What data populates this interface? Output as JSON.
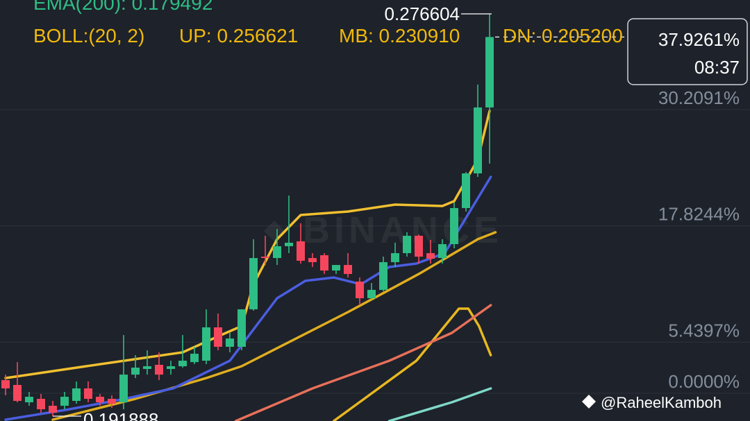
{
  "chart_data": {
    "type": "candlestick",
    "indicators": {
      "ema": "EMA(200): 0.179492",
      "boll": "BOLL:(20, 2)",
      "up": "UP: 0.256621",
      "mb": "MB: 0.230910",
      "dn": "DN: 0.205200"
    },
    "open": [
      1.4,
      0.89,
      -0.96,
      -0.59,
      -1.33,
      -1.33,
      -0.81,
      0.52,
      -0.37,
      -0.59,
      -0.96,
      1.99,
      2.59,
      3.03,
      2.59,
      2.88,
      3.32,
      3.47,
      7.02,
      4.95,
      4.95,
      8.94,
      14.55,
      14.4,
      15.66,
      16.18,
      14.4,
      14.7,
      13.07,
      13.66,
      11.89,
      10.12,
      11.01,
      13.96,
      14.92,
      16.77,
      14.92,
      14.4,
      15.88,
      19.72,
      23.41,
      30.43
    ],
    "high": [
      1.99,
      3.32,
      0.15,
      -0.07,
      -0.81,
      0.15,
      1.26,
      1.26,
      -0.07,
      -0.22,
      6.2,
      4.06,
      4.58,
      4.36,
      3.47,
      6.2,
      4.95,
      8.94,
      8.49,
      6.43,
      8.94,
      16.4,
      16.77,
      17.5,
      21.05,
      18.1,
      14.92,
      14.92,
      13.66,
      14.92,
      12.33,
      11.74,
      14.55,
      16.03,
      17.14,
      16.91,
      16.32,
      16.4,
      20.31,
      23.56,
      32.87,
      40.4
    ],
    "low": [
      -0.22,
      -0.96,
      -1.33,
      -2.07,
      -2.44,
      -1.7,
      -1.11,
      -0.96,
      -1.33,
      -1.55,
      -1.7,
      1.62,
      1.99,
      1.4,
      1.99,
      2.73,
      3.1,
      3.1,
      4.58,
      4.36,
      4.58,
      8.79,
      13.66,
      13.66,
      14.92,
      13.81,
      13.44,
      12.7,
      12.7,
      12.33,
      9.38,
      9.97,
      10.86,
      13.44,
      14.55,
      13.81,
      13.81,
      13.81,
      15.44,
      19.35,
      23.04,
      24.45
    ],
    "close": [
      0.52,
      -0.81,
      -0.37,
      -1.7,
      -2.07,
      -0.37,
      0.52,
      -0.59,
      -0.96,
      -1.11,
      1.99,
      2.73,
      2.88,
      1.99,
      2.88,
      3.47,
      4.21,
      7.02,
      4.95,
      5.83,
      8.94,
      14.4,
      14.4,
      15.66,
      16.03,
      14.11,
      13.96,
      13.07,
      13.66,
      12.7,
      10.12,
      11.01,
      13.96,
      14.92,
      16.77,
      14.55,
      14.33,
      15.88,
      19.72,
      23.41,
      30.43,
      37.93
    ],
    "up_color": "#2ebd85",
    "down_color": "#f6465d",
    "lines": [
      {
        "color": "#f0c030",
        "x": [
          0,
          8,
          15,
          18,
          20,
          21,
          23,
          25,
          29,
          33,
          37,
          38,
          40,
          41
        ],
        "values": [
          1.62,
          3.1,
          4.36,
          6.06,
          7.16,
          11.6,
          16.4,
          18.98,
          19.35,
          20.09,
          19.94,
          20.46,
          24.89,
          30.06
        ]
      },
      {
        "color": "#e0ae20",
        "x": [
          4,
          11,
          17,
          20,
          29,
          35,
          40,
          41.5
        ],
        "values": [
          -2.81,
          -0.59,
          1.62,
          2.88,
          8.64,
          12.7,
          16.4,
          17.14
        ]
      },
      {
        "color": "#e8b820",
        "x": [
          27.8,
          34.8,
          38.4,
          39.2,
          40.1,
          41.1
        ],
        "values": [
          -2.95,
          3.47,
          9.01,
          9.01,
          7.16,
          4.06
        ]
      },
      {
        "color": "#4a5ee0",
        "x": [
          0,
          5.4,
          10.1,
          14.2,
          19,
          23,
          25.4,
          27.8,
          30.1,
          32.5,
          34.8,
          37.2,
          39.5,
          41.1
        ],
        "values": [
          -2.81,
          -1.7,
          -0.59,
          0.52,
          3.47,
          10.12,
          11.97,
          12.33,
          11.6,
          13.44,
          13.81,
          14.92,
          19.72,
          23.04
        ]
      },
      {
        "color": "#e8705a",
        "x": [
          19.5,
          26,
          32.5,
          37.8,
          41.1
        ],
        "values": [
          -2.95,
          0.52,
          3.47,
          6.43,
          9.38
        ]
      },
      {
        "color": "#7fd8c8",
        "x": [
          32.5,
          37.8,
          41.1
        ],
        "values": [
          -2.95,
          -0.96,
          0.52
        ]
      }
    ],
    "ylim": [
      -2.95,
      41.87
    ],
    "yticks": [
      {
        "value": 0,
        "label": "0.0000%"
      },
      {
        "value": 5.4397,
        "label": "5.4397%"
      },
      {
        "value": 17.8244,
        "label": "17.8244%"
      },
      {
        "value": 30.2091,
        "label": "30.2091%"
      }
    ],
    "grid": true,
    "annotations": {
      "high_label": "0.276604",
      "low_label": "0.191888",
      "price": "37.9261%",
      "countdown": "08:37",
      "watermark": "BINANCE",
      "credit": "@RaheelKamboh"
    }
  }
}
